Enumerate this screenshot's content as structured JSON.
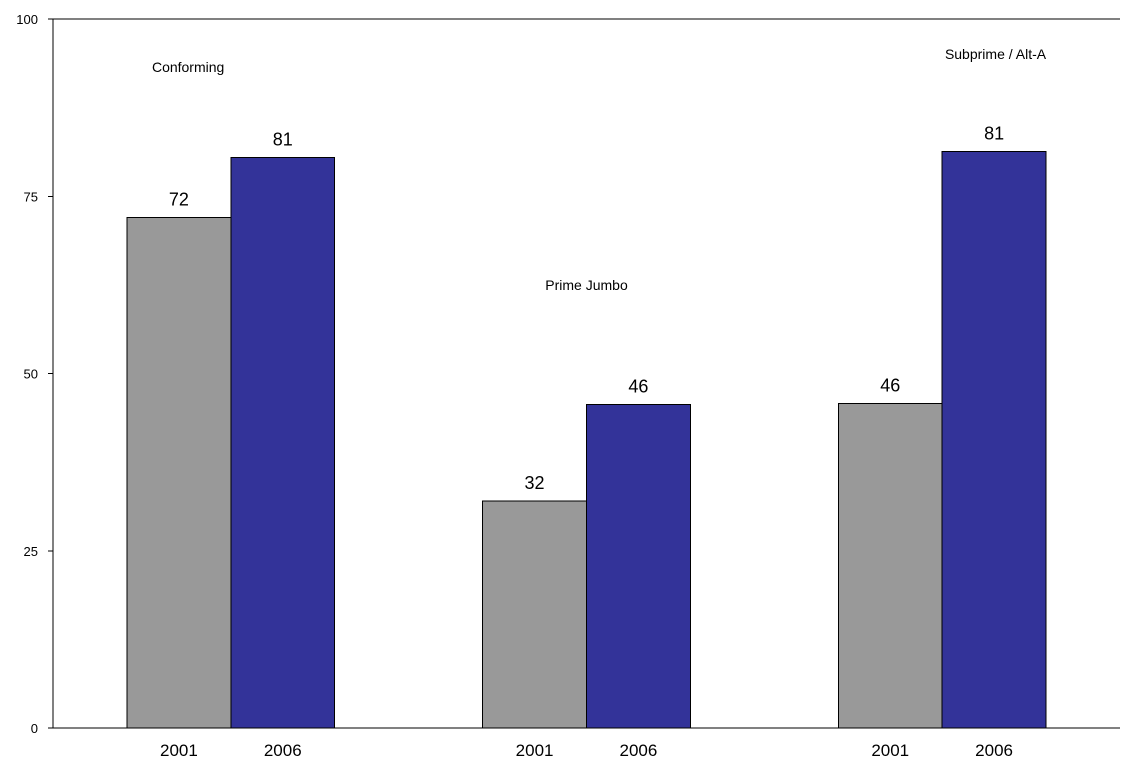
{
  "chart_data": {
    "type": "bar",
    "ylim": [
      0,
      100
    ],
    "yticks": [
      0,
      25,
      50,
      75,
      100
    ],
    "grid": false,
    "legend": "none",
    "colors": {
      "2001": "#999999",
      "2006": "#333399"
    },
    "groups": [
      {
        "label": "Conforming",
        "bars": [
          {
            "x": "2001",
            "value": 72,
            "label": "72"
          },
          {
            "x": "2006",
            "value": 80.5,
            "label": "81"
          }
        ]
      },
      {
        "label": "Prime Jumbo",
        "bars": [
          {
            "x": "2001",
            "value": 32,
            "label": "32"
          },
          {
            "x": "2006",
            "value": 45.6,
            "label": "46"
          }
        ]
      },
      {
        "label": "Subprime / Alt-A",
        "bars": [
          {
            "x": "2001",
            "value": 45.8,
            "label": "46"
          },
          {
            "x": "2006",
            "value": 81.3,
            "label": "81"
          }
        ]
      }
    ]
  }
}
